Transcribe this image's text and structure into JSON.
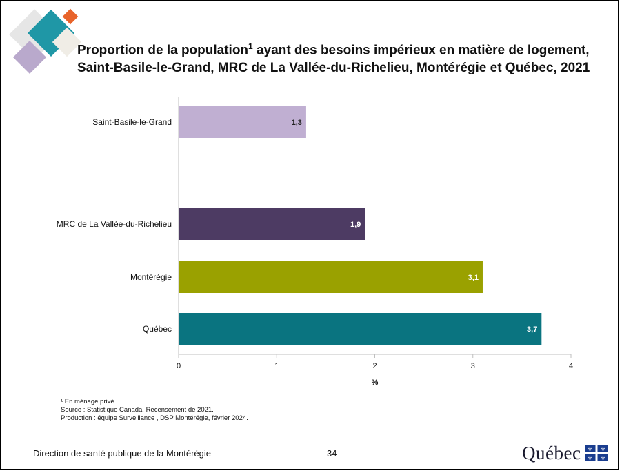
{
  "title_line1": "Proportion de la population",
  "title_sup": "1",
  "title_rest": " ayant des besoins impérieux en matière de logement,",
  "title_line2": "Saint-Basile-le-Grand, MRC de La Vallée-du-Richelieu, Montérégie et Québec, 2021",
  "notes": {
    "note1": "¹ En ménage privé.",
    "source": "Source : Statistique Canada, Recensement de 2021.",
    "production": "Production : équipe Surveillance , DSP Montérégie, février 2024."
  },
  "footer": {
    "organization": "Direction de santé publique de la Montérégie",
    "page_number": "34",
    "logo_text": "Québec"
  },
  "colors": {
    "saint_basile": "#c0afd2",
    "mrc": "#4d3b63",
    "monteregie": "#9aa100",
    "quebec": "#0a7480",
    "accent_teal": "#1f97a6",
    "accent_orange": "#e8642b"
  },
  "chart_data": {
    "type": "bar",
    "orientation": "horizontal",
    "categories": [
      "Saint-Basile-le-Grand",
      "MRC de La Vallée-du-Richelieu",
      "Montérégie",
      "Québec"
    ],
    "values": [
      1.3,
      1.9,
      3.1,
      3.7
    ],
    "value_labels": [
      "1,3",
      "1,9",
      "3,1",
      "3,7"
    ],
    "bar_colors": [
      "#c0afd2",
      "#4d3b63",
      "#9aa100",
      "#0a7480"
    ],
    "label_colors": [
      "#222222",
      "#ffffff",
      "#ffffff",
      "#ffffff"
    ],
    "xlabel": "%",
    "xlim": [
      0,
      4
    ],
    "xticks": [
      "0",
      "1",
      "2",
      "3",
      "4"
    ],
    "grid": false,
    "legend": "none"
  }
}
